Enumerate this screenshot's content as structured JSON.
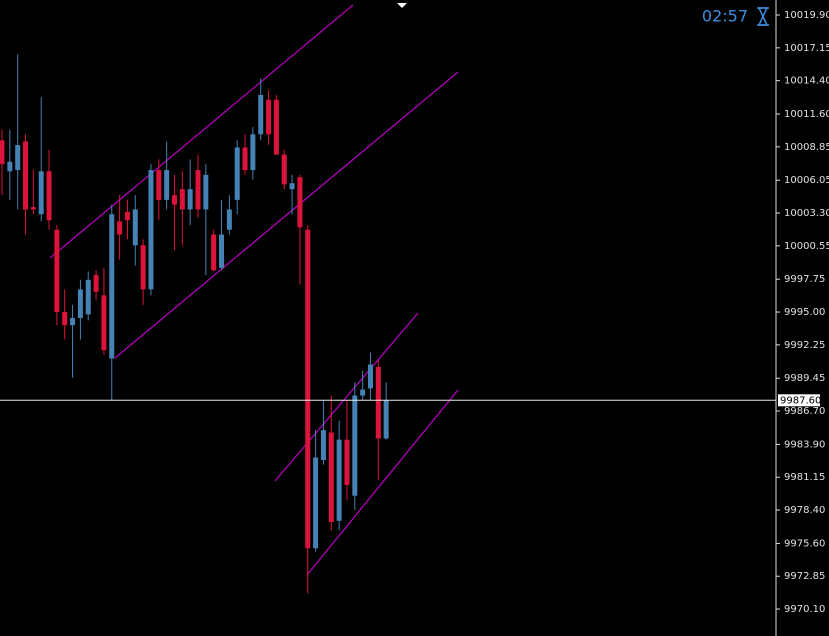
{
  "chart_data": {
    "type": "candlestick",
    "clock": "02:57",
    "up_color": "#4682b4",
    "down_color": "#dc143c",
    "open": [
      10009.4,
      10006.8,
      10006.9,
      10009.3,
      10003.8,
      10003.2,
      10006.8,
      10001.9,
      9995.0,
      9993.9,
      9994.5,
      9994.8,
      9998.1,
      9996.4,
      9991.1,
      10002.6,
      10003.4,
      10000.6,
      10000.6,
      9996.9,
      10006.9,
      10004.4,
      10004.8,
      10005.3,
      10003.6,
      10006.9,
      10003.6,
      10001.5,
      9998.7,
      10001.9,
      10004.4,
      10008.8,
      10006.9,
      10009.9,
      10012.8,
      10012.8,
      10008.2,
      10005.3,
      10006.3,
      10001.9,
      9975.2,
      9982.6,
      9984.9,
      9977.5,
      9984.3,
      9979.6,
      9988.0,
      9988.6,
      9990.4,
      9984.4
    ],
    "high": [
      10010.3,
      10010.3,
      10016.6,
      10009.9,
      10006.9,
      10013.0,
      10008.6,
      10002.3,
      9996.9,
      9995.6,
      9997.7,
      9998.4,
      9998.5,
      9998.7,
      10004.0,
      10004.8,
      10004.4,
      10004.8,
      10001.1,
      10007.4,
      10007.8,
      10009.3,
      10006.5,
      10006.8,
      10007.8,
      10008.2,
      10007.4,
      10001.9,
      10004.4,
      10004.8,
      10009.4,
      10009.9,
      10010.5,
      10014.6,
      10013.6,
      10013.2,
      10008.6,
      10006.5,
      10006.5,
      10002.3,
      9985.1,
      9987.6,
      9988.0,
      9985.9,
      9987.6,
      9989.1,
      9990.1,
      9991.6,
      9991.0,
      9989.1
    ],
    "low": [
      10004.8,
      10004.4,
      10003.6,
      10001.5,
      10003.2,
      10002.6,
      10001.9,
      9993.9,
      9992.7,
      9989.5,
      9992.7,
      9994.3,
      9996.0,
      9991.4,
      9987.6,
      9999.4,
      10001.1,
      9998.9,
      9995.6,
      9996.4,
      10002.7,
      10003.6,
      10000.2,
      10000.6,
      10002.3,
      10002.9,
      9998.1,
      9998.4,
      9998.5,
      10001.5,
      10003.2,
      10006.5,
      10006.1,
      10009.4,
      10009.0,
      10008.2,
      10005.3,
      10003.2,
      9997.3,
      9971.4,
      9974.9,
      9982.2,
      9976.7,
      9976.7,
      9979.2,
      9978.4,
      9987.6,
      9987.6,
      9980.9,
      9984.3
    ],
    "close": [
      10007.4,
      10007.6,
      10009.0,
      10003.6,
      10003.6,
      10006.8,
      10002.7,
      9995.0,
      9993.9,
      9994.5,
      9996.9,
      9997.7,
      9996.7,
      9991.8,
      10003.2,
      10001.5,
      10002.7,
      10003.6,
      9996.9,
      10006.9,
      10004.4,
      10006.9,
      10004.0,
      10003.6,
      10005.3,
      10003.6,
      10006.5,
      9998.5,
      10001.5,
      10003.6,
      10008.8,
      10006.9,
      10009.9,
      10013.2,
      10009.9,
      10008.2,
      10005.7,
      10005.8,
      10002.1,
      9975.2,
      9982.8,
      9985.1,
      9977.4,
      9984.3,
      9980.5,
      9988.0,
      9988.5,
      9990.6,
      9984.4,
      9987.6
    ],
    "current_price": {
      "value": 9987.6,
      "label": "9987.60"
    },
    "ylim": [
      9967.84,
      10021.16
    ],
    "yticks": [
      {
        "value": 10019.9,
        "label": "10019.90"
      },
      10017.15,
      {
        "value": 10014.4,
        "label": "10014.40"
      },
      {
        "value": 10011.6,
        "label": "10011.60"
      },
      10008.85,
      10006.05,
      {
        "value": 10003.3,
        "label": "10003.30"
      },
      10000.55,
      9997.75,
      {
        "value": 9995,
        "label": "9995.00"
      },
      9992.25,
      9989.45,
      {
        "value": 9986.7,
        "label": "9986.70"
      },
      {
        "value": 9983.9,
        "label": "9983.90"
      },
      9981.15,
      {
        "value": 9978.4,
        "label": "9978.40"
      },
      {
        "value": 9975.6,
        "label": "9975.60"
      },
      9972.85,
      {
        "value": 9970.1,
        "label": "9970.10"
      }
    ]
  }
}
